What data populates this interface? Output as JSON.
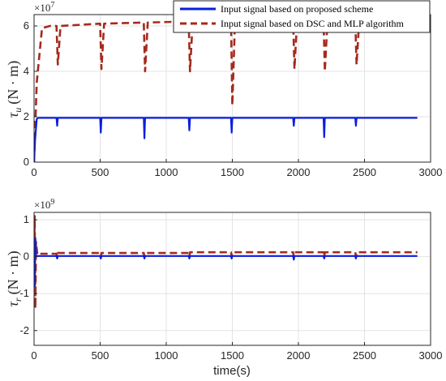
{
  "chart_data": [
    {
      "type": "line",
      "ylabel_sym": "τ",
      "ylabel_sub": "u",
      "ylabel_unit": "(N · m)",
      "exponent_base": "×10",
      "exponent_power": "7",
      "xlim": [
        0,
        3000
      ],
      "ylim": [
        0,
        6.5
      ],
      "x_ticks": [
        0,
        500,
        1000,
        1500,
        2000,
        2500,
        3000
      ],
      "y_ticks": [
        0,
        2,
        4,
        6
      ],
      "grid": true,
      "legend_position": "top-right",
      "legend": [
        "Input signal based on proposed scheme",
        "Input signal based on DSC and MLP algorithm"
      ],
      "series": [
        {
          "name": "Input signal based on proposed scheme",
          "color": "#0a1ee0",
          "style": "solid",
          "x": [
            0,
            8,
            20,
            30,
            40,
            170,
            175,
            180,
            500,
            505,
            510,
            830,
            835,
            840,
            1170,
            1175,
            1180,
            1490,
            1495,
            1500,
            1960,
            1965,
            1970,
            2190,
            2195,
            2200,
            2430,
            2435,
            2440,
            2900
          ],
          "y": [
            0,
            1.0,
            1.9,
            1.95,
            1.95,
            1.95,
            1.6,
            1.95,
            1.95,
            1.3,
            1.95,
            1.95,
            1.05,
            1.95,
            1.95,
            1.4,
            1.95,
            1.95,
            1.3,
            1.95,
            1.95,
            1.6,
            1.95,
            1.95,
            1.1,
            1.95,
            1.95,
            1.6,
            1.95,
            1.95
          ]
        },
        {
          "name": "Input signal based on DSC and MLP algorithm",
          "color": "#a52a1e",
          "style": "dashed",
          "x": [
            0,
            20,
            60,
            120,
            170,
            180,
            200,
            500,
            510,
            530,
            830,
            840,
            860,
            1170,
            1180,
            1200,
            1490,
            1500,
            1520,
            1960,
            1970,
            1990,
            2190,
            2200,
            2220,
            2430,
            2440,
            2460,
            2900
          ],
          "y": [
            0,
            3.5,
            5.9,
            6.0,
            6.0,
            4.3,
            6.0,
            6.1,
            4.1,
            6.1,
            6.15,
            4.0,
            6.15,
            6.2,
            4.0,
            6.2,
            6.2,
            2.5,
            6.25,
            6.25,
            4.1,
            6.25,
            6.25,
            4.0,
            6.25,
            6.25,
            4.3,
            6.25,
            6.3
          ]
        }
      ]
    },
    {
      "type": "line",
      "xlabel": "time(s)",
      "ylabel_sym": "τ",
      "ylabel_sub": "r",
      "ylabel_unit": "(N · m)",
      "exponent_base": "×10",
      "exponent_power": "9",
      "xlim": [
        0,
        3000
      ],
      "ylim": [
        -2.4,
        1.2
      ],
      "x_ticks": [
        0,
        500,
        1000,
        1500,
        2000,
        2500,
        3000
      ],
      "y_ticks": [
        -2,
        -1,
        0,
        1
      ],
      "grid": true,
      "series": [
        {
          "name": "Input signal based on proposed scheme",
          "color": "#0a1ee0",
          "style": "solid",
          "x": [
            0,
            5,
            10,
            15,
            30,
            170,
            175,
            180,
            500,
            505,
            510,
            830,
            835,
            840,
            1170,
            1175,
            1180,
            1490,
            1495,
            1500,
            1960,
            1965,
            1970,
            2190,
            2195,
            2200,
            2430,
            2435,
            2440,
            2900
          ],
          "y": [
            0,
            -0.8,
            0.5,
            0.02,
            0.02,
            0.02,
            -0.05,
            0.02,
            0.02,
            -0.05,
            0.02,
            0.02,
            -0.05,
            0.02,
            0.02,
            -0.05,
            0.02,
            0.02,
            -0.05,
            0.02,
            0.02,
            -0.08,
            0.02,
            0.02,
            -0.05,
            0.02,
            0.02,
            -0.05,
            0.02,
            0.02
          ]
        },
        {
          "name": "Input signal based on DSC and MLP algorithm",
          "color": "#a52a1e",
          "style": "dashed",
          "x": [
            0,
            5,
            10,
            15,
            25,
            40,
            170,
            175,
            180,
            500,
            505,
            510,
            830,
            835,
            840,
            1170,
            1175,
            1180,
            1490,
            1495,
            1500,
            1960,
            1965,
            1970,
            2190,
            2195,
            2200,
            2430,
            2435,
            2440,
            2900
          ],
          "y": [
            0,
            1.1,
            -1.4,
            0.4,
            0.05,
            0.08,
            0.08,
            0.0,
            0.1,
            0.1,
            0.0,
            0.1,
            0.1,
            0.0,
            0.1,
            0.1,
            0.0,
            0.12,
            0.12,
            0.0,
            0.12,
            0.12,
            0.0,
            0.12,
            0.12,
            0.0,
            0.12,
            0.12,
            0.0,
            0.12,
            0.12
          ]
        }
      ]
    }
  ]
}
